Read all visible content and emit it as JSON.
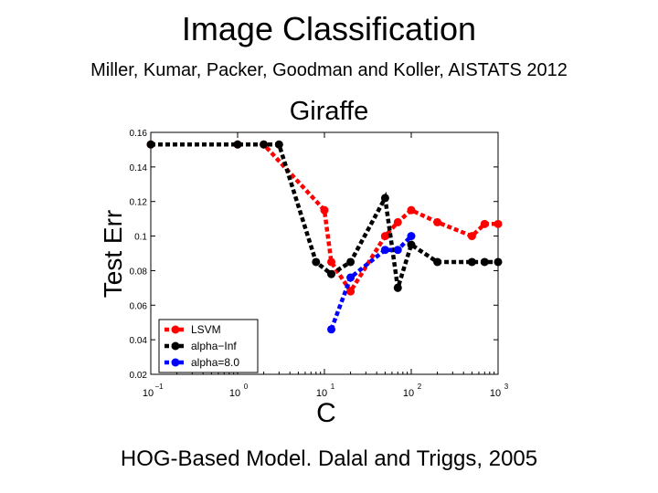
{
  "slide": {
    "title": "Image Classification",
    "subtitle": "Miller, Kumar, Packer, Goodman and Koller, AISTATS 2012",
    "caption": "HOG-Based Model. Dalal and Triggs, 2005"
  },
  "chart_data": {
    "type": "line",
    "title": "Giraffe",
    "xlabel": "C",
    "ylabel": "Test Err",
    "xscale": "log",
    "xlim": [
      0.1,
      1000
    ],
    "ylim": [
      0.02,
      0.16
    ],
    "xticks": [
      0.1,
      1,
      10,
      100,
      1000
    ],
    "xtick_labels": [
      {
        "base": "10",
        "exp": "−1"
      },
      {
        "base": "10",
        "exp": "0"
      },
      {
        "base": "10",
        "exp": "1"
      },
      {
        "base": "10",
        "exp": "2"
      },
      {
        "base": "10",
        "exp": "3"
      }
    ],
    "yticks": [
      0.02,
      0.04,
      0.06,
      0.08,
      0.1,
      0.12,
      0.14,
      0.16
    ],
    "ytick_labels": [
      "0.02",
      "0.04",
      "0.06",
      "0.08",
      "0.1",
      "0.12",
      "0.14",
      "0.16"
    ],
    "grid": false,
    "legend_position": "bottom-left",
    "series": [
      {
        "name": "LSVM",
        "color": "#ff0000",
        "x": [
          0.1,
          1,
          2,
          10,
          12,
          20,
          50,
          70,
          100,
          200,
          500,
          700,
          1000
        ],
        "y": [
          0.153,
          0.153,
          0.153,
          0.115,
          0.085,
          0.068,
          0.1,
          0.108,
          0.115,
          0.108,
          0.1,
          0.107,
          0.107
        ]
      },
      {
        "name": "alpha−Inf",
        "color": "#000000",
        "x": [
          0.1,
          1,
          2,
          3,
          8,
          12,
          20,
          50,
          70,
          100,
          200,
          500,
          700,
          1000
        ],
        "y": [
          0.153,
          0.153,
          0.153,
          0.153,
          0.085,
          0.078,
          0.085,
          0.122,
          0.07,
          0.095,
          0.085,
          0.085,
          0.085,
          0.085
        ]
      },
      {
        "name": "alpha=8.0",
        "color": "#0000ff",
        "x": [
          12,
          20,
          50,
          70,
          100
        ],
        "y": [
          0.046,
          0.076,
          0.092,
          0.092,
          0.1
        ]
      }
    ]
  }
}
